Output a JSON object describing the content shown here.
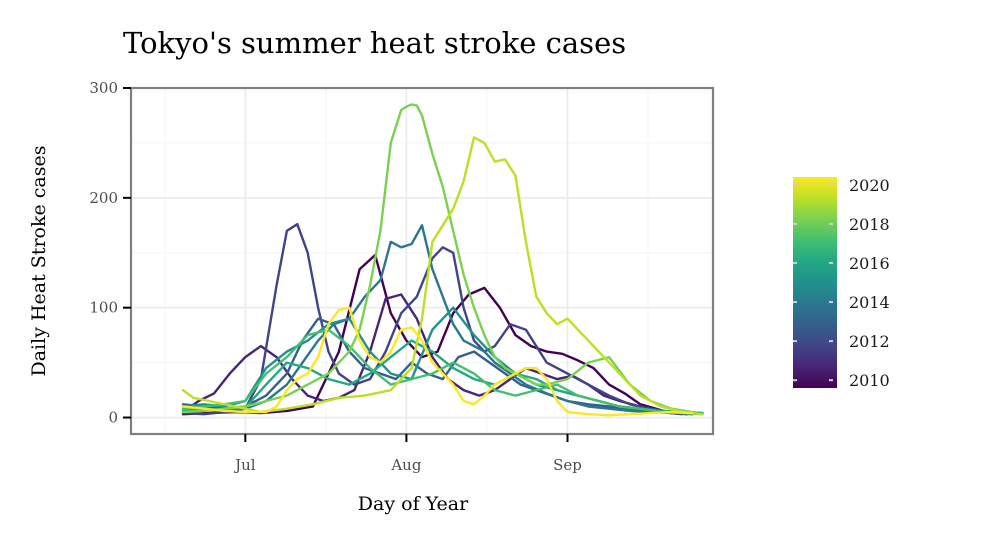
{
  "chart_data": {
    "type": "line",
    "title": "Tokyo's summer heat stroke cases",
    "xlabel": "Day of Year",
    "ylabel": "Daily Heat Stroke cases",
    "xlim": [
      160,
      272
    ],
    "ylim": [
      -15,
      300
    ],
    "x_ticks": [
      {
        "value": 182,
        "label": "Jul"
      },
      {
        "value": 213,
        "label": "Aug"
      },
      {
        "value": 244,
        "label": "Sep"
      }
    ],
    "y_ticks": [
      {
        "value": 0,
        "label": "0"
      },
      {
        "value": 100,
        "label": "100"
      },
      {
        "value": 200,
        "label": "200"
      },
      {
        "value": 300,
        "label": "300"
      }
    ],
    "grid": true,
    "legend": {
      "placement": "right",
      "type": "colorbar",
      "range": [
        2009.6,
        2020.4
      ],
      "labels": [
        "2010",
        "2012",
        "2014",
        "2016",
        "2018",
        "2020"
      ]
    },
    "series": [
      {
        "year": 2010,
        "color": "#440154",
        "x": [
          170,
          175,
          180,
          185,
          190,
          195,
          200,
          204,
          207,
          210,
          213,
          216,
          219,
          222,
          225,
          228,
          231,
          234,
          237,
          240,
          243,
          246,
          249,
          252,
          255,
          258,
          261,
          264,
          267
        ],
        "y": [
          3,
          4,
          5,
          4,
          6,
          10,
          60,
          135,
          148,
          95,
          70,
          55,
          60,
          95,
          112,
          118,
          100,
          75,
          65,
          60,
          58,
          52,
          45,
          30,
          22,
          12,
          8,
          4,
          3
        ]
      },
      {
        "year": 2011,
        "color": "#482575",
        "x": [
          170,
          173,
          176,
          179,
          182,
          185,
          188,
          191,
          194,
          197,
          200,
          203,
          206,
          209,
          212,
          215,
          218,
          221,
          224,
          227,
          230,
          233,
          236,
          239,
          242,
          245,
          248,
          251,
          254,
          258,
          262,
          266
        ],
        "y": [
          5,
          15,
          22,
          40,
          55,
          65,
          55,
          35,
          20,
          15,
          18,
          25,
          60,
          108,
          112,
          90,
          55,
          35,
          25,
          20,
          25,
          35,
          45,
          40,
          35,
          38,
          30,
          20,
          15,
          10,
          5,
          3
        ]
      },
      {
        "year": 2012,
        "color": "#414487",
        "x": [
          170,
          174,
          178,
          182,
          185,
          188,
          190,
          192,
          194,
          196,
          198,
          200,
          203,
          206,
          209,
          212,
          215,
          218,
          220,
          222,
          224,
          226,
          228,
          230,
          233,
          236,
          240,
          244,
          248,
          252,
          256,
          260,
          264,
          268
        ],
        "y": [
          4,
          3,
          5,
          8,
          35,
          120,
          170,
          176,
          150,
          100,
          60,
          40,
          30,
          35,
          60,
          95,
          110,
          145,
          155,
          150,
          100,
          70,
          60,
          65,
          85,
          80,
          50,
          40,
          30,
          20,
          12,
          8,
          5,
          3
        ]
      },
      {
        "year": 2013,
        "color": "#355f8d",
        "x": [
          170,
          174,
          178,
          182,
          186,
          190,
          193,
          196,
          199,
          202,
          205,
          208,
          211,
          214,
          217,
          220,
          223,
          226,
          229,
          232,
          235,
          238,
          241,
          244,
          248,
          252,
          256,
          260,
          264,
          268
        ],
        "y": [
          12,
          10,
          8,
          10,
          20,
          40,
          70,
          90,
          85,
          60,
          45,
          40,
          35,
          50,
          40,
          35,
          55,
          60,
          50,
          40,
          30,
          25,
          20,
          15,
          12,
          10,
          8,
          6,
          5,
          4
        ]
      },
      {
        "year": 2014,
        "color": "#2a788e",
        "x": [
          170,
          174,
          178,
          182,
          186,
          190,
          193,
          196,
          199,
          202,
          205,
          208,
          210,
          212,
          214,
          216,
          218,
          220,
          222,
          224,
          226,
          228,
          230,
          233,
          236,
          240,
          244,
          248,
          252,
          256,
          260,
          264,
          268
        ],
        "y": [
          8,
          7,
          6,
          8,
          15,
          30,
          50,
          70,
          85,
          90,
          110,
          125,
          160,
          155,
          158,
          175,
          135,
          110,
          85,
          70,
          65,
          60,
          50,
          40,
          30,
          22,
          15,
          10,
          8,
          6,
          5,
          4,
          3
        ]
      },
      {
        "year": 2015,
        "color": "#21918c",
        "x": [
          170,
          174,
          178,
          182,
          186,
          190,
          194,
          198,
          202,
          206,
          210,
          214,
          218,
          222,
          226,
          230,
          234,
          238,
          242,
          246,
          250,
          254,
          258,
          262,
          266,
          270
        ],
        "y": [
          10,
          12,
          10,
          15,
          45,
          60,
          70,
          85,
          90,
          60,
          40,
          35,
          80,
          100,
          75,
          55,
          40,
          30,
          25,
          20,
          15,
          10,
          8,
          6,
          5,
          4
        ]
      },
      {
        "year": 2016,
        "color": "#22a884",
        "x": [
          170,
          174,
          178,
          182,
          186,
          190,
          194,
          198,
          202,
          206,
          210,
          214,
          218,
          222,
          226,
          230,
          234,
          238,
          242,
          246,
          250,
          254,
          258,
          262,
          266,
          270
        ],
        "y": [
          6,
          8,
          7,
          9,
          30,
          50,
          45,
          35,
          30,
          40,
          55,
          70,
          60,
          45,
          35,
          30,
          40,
          35,
          25,
          20,
          15,
          10,
          8,
          6,
          5,
          4
        ]
      },
      {
        "year": 2017,
        "color": "#44bf70",
        "x": [
          170,
          174,
          178,
          182,
          186,
          190,
          194,
          198,
          202,
          206,
          210,
          214,
          218,
          222,
          226,
          230,
          234,
          238,
          242,
          246,
          250,
          254,
          258,
          262,
          266,
          270
        ],
        "y": [
          8,
          10,
          12,
          15,
          40,
          55,
          75,
          80,
          65,
          45,
          30,
          35,
          40,
          50,
          40,
          25,
          20,
          25,
          30,
          20,
          15,
          10,
          8,
          5,
          4,
          3
        ]
      },
      {
        "year": 2018,
        "color": "#7ad151",
        "x": [
          170,
          174,
          178,
          182,
          186,
          190,
          194,
          198,
          202,
          204,
          206,
          208,
          210,
          212,
          213,
          214,
          215,
          216,
          218,
          220,
          222,
          224,
          226,
          228,
          230,
          232,
          234,
          236,
          238,
          240,
          244,
          248,
          252,
          256,
          260,
          264,
          268
        ],
        "y": [
          5,
          6,
          8,
          10,
          15,
          20,
          30,
          40,
          60,
          80,
          120,
          170,
          250,
          280,
          283,
          285,
          284,
          275,
          240,
          210,
          170,
          130,
          100,
          75,
          55,
          45,
          40,
          35,
          30,
          30,
          35,
          50,
          55,
          30,
          15,
          8,
          5
        ]
      },
      {
        "year": 2019,
        "color": "#bddf26",
        "x": [
          170,
          172,
          175,
          180,
          185,
          190,
          195,
          200,
          205,
          210,
          214,
          216,
          218,
          220,
          222,
          224,
          226,
          228,
          230,
          232,
          234,
          236,
          238,
          240,
          242,
          244,
          246,
          248,
          250,
          252,
          254,
          256,
          258,
          262,
          266,
          270
        ],
        "y": [
          25,
          18,
          15,
          10,
          5,
          8,
          12,
          18,
          20,
          25,
          45,
          90,
          160,
          175,
          190,
          215,
          255,
          250,
          233,
          235,
          220,
          160,
          110,
          95,
          85,
          90,
          80,
          70,
          60,
          50,
          40,
          30,
          20,
          10,
          5,
          3
        ]
      },
      {
        "year": 2020,
        "color": "#fde725",
        "x": [
          170,
          174,
          178,
          182,
          186,
          188,
          190,
          192,
          194,
          196,
          198,
          200,
          202,
          204,
          206,
          208,
          210,
          212,
          214,
          216,
          218,
          220,
          222,
          224,
          226,
          228,
          230,
          232,
          234,
          236,
          238,
          240,
          242,
          244,
          248,
          252,
          256,
          260,
          264,
          268
        ],
        "y": [
          10,
          8,
          6,
          5,
          5,
          10,
          25,
          35,
          40,
          55,
          85,
          98,
          100,
          70,
          55,
          50,
          60,
          80,
          82,
          70,
          50,
          40,
          30,
          15,
          12,
          20,
          30,
          35,
          40,
          45,
          45,
          35,
          15,
          5,
          3,
          2,
          3,
          4,
          5,
          4
        ]
      }
    ]
  }
}
